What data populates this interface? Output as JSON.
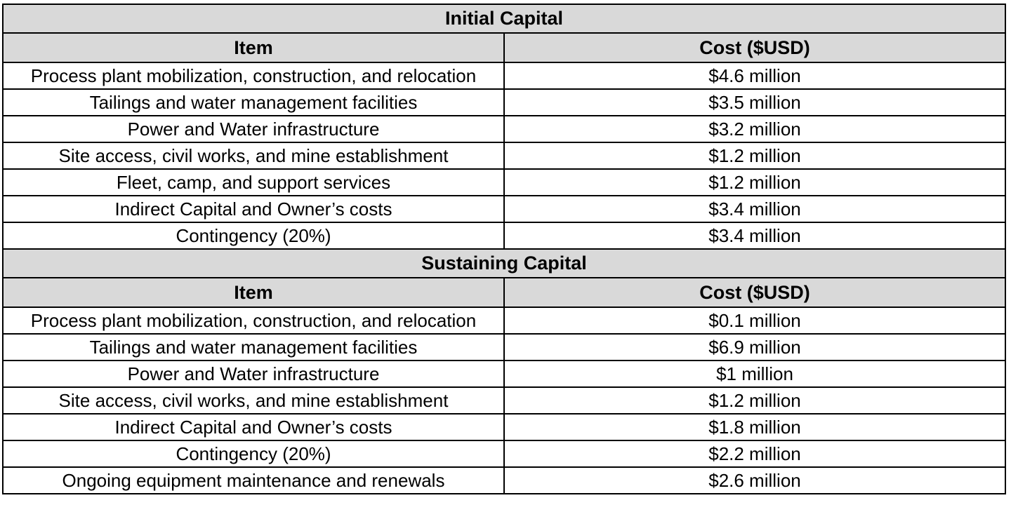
{
  "sections": [
    {
      "title": "Initial Capital",
      "header": [
        "Item",
        "Cost ($USD)"
      ],
      "rows": [
        [
          "Process plant mobilization, construction, and relocation",
          "$4.6 million"
        ],
        [
          "Tailings and water management facilities",
          "$3.5 million"
        ],
        [
          "Power and Water infrastructure",
          "$3.2 million"
        ],
        [
          "Site access, civil works, and mine establishment",
          "$1.2 million"
        ],
        [
          "Fleet, camp, and support services",
          "$1.2 million"
        ],
        [
          "Indirect Capital and Owner’s costs",
          "$3.4 million"
        ],
        [
          "Contingency (20%)",
          "$3.4 million"
        ]
      ]
    },
    {
      "title": "Sustaining Capital",
      "header": [
        "Item",
        "Cost ($USD)"
      ],
      "rows": [
        [
          "Process plant mobilization, construction, and relocation",
          "$0.1 million"
        ],
        [
          "Tailings and water management facilities",
          "$6.9 million"
        ],
        [
          "Power and Water infrastructure",
          "$1 million"
        ],
        [
          "Site access, civil works, and mine establishment",
          "$1.2 million"
        ],
        [
          "Indirect Capital and Owner’s costs",
          "$1.8 million"
        ],
        [
          "Contingency (20%)",
          "$2.2 million"
        ],
        [
          "Ongoing equipment maintenance and renewals",
          "$2.6 million"
        ]
      ]
    }
  ]
}
